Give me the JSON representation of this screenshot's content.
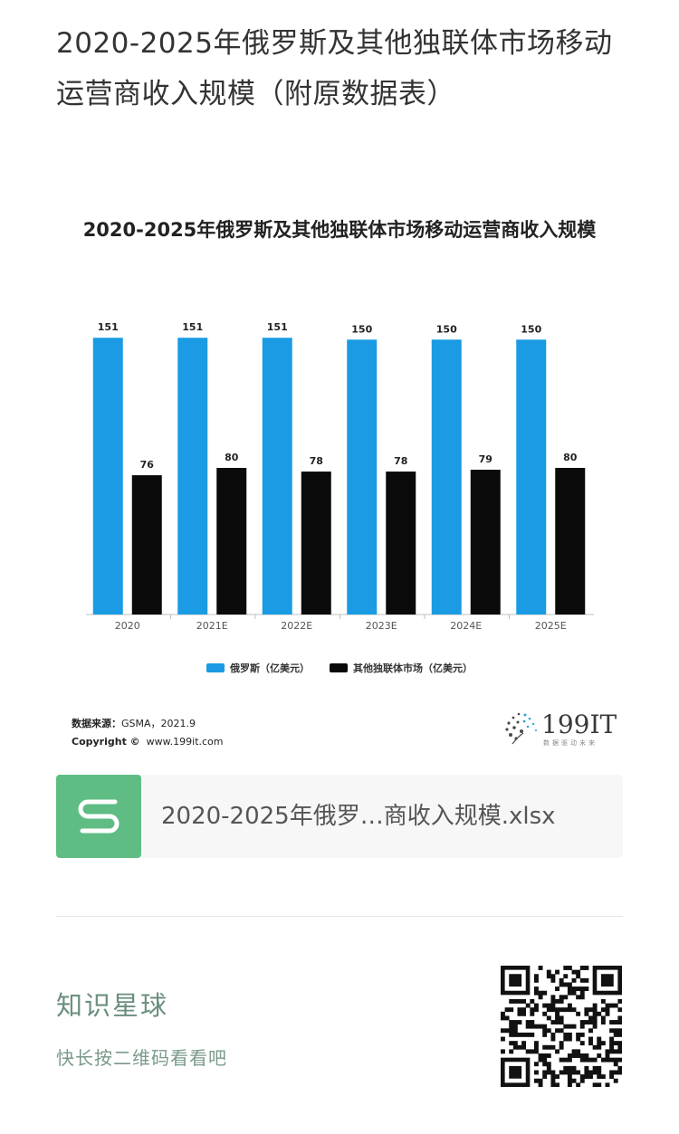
{
  "article": {
    "title": "2020-2025年俄罗斯及其他独联体市场移动运营商收入规模（附原数据表）"
  },
  "chart_data": {
    "type": "bar",
    "title": "2020-2025年俄罗斯及其他独联体市场移动运营商收入规模",
    "categories": [
      "2020",
      "2021E",
      "2022E",
      "2023E",
      "2024E",
      "2025E"
    ],
    "series": [
      {
        "name": "俄罗斯（亿美元）",
        "color": "#1a9be3",
        "values": [
          151,
          151,
          151,
          150,
          150,
          150
        ]
      },
      {
        "name": "其他独联体市场（亿美元）",
        "color": "#0a0a0a",
        "values": [
          76,
          80,
          78,
          78,
          79,
          80
        ]
      }
    ],
    "xlabel": "",
    "ylabel": "",
    "ylim": [
      0,
      160
    ],
    "grid": false,
    "legend_position": "bottom"
  },
  "source": {
    "label": "数据来源：",
    "text": "GSMA，2021.9",
    "copyright_label": "Copyright ©",
    "copyright_text": "www.199it.com"
  },
  "brand": {
    "name": "199IT",
    "tagline": "数据驱动未来"
  },
  "attachment": {
    "file_name": "2020-2025年俄罗…商收入规模.xlsx"
  },
  "zsxq": {
    "title": "知识星球",
    "subtitle": "快长按二维码看看吧"
  }
}
